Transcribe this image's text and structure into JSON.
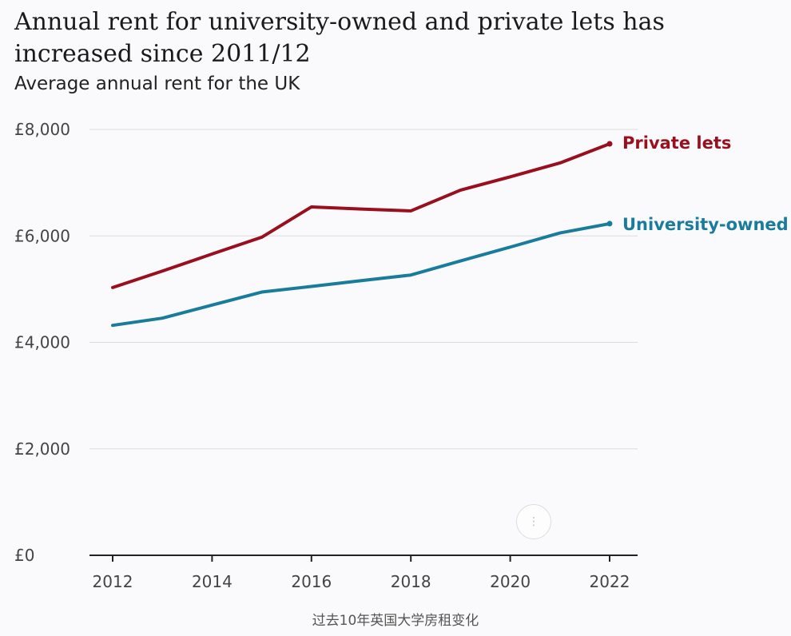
{
  "chart_data": {
    "type": "line",
    "title": "Annual rent for university-owned and private lets has increased since 2011/12",
    "subtitle": "Average annual rent for the UK",
    "x": [
      2012,
      2013,
      2014,
      2015,
      2016,
      2017,
      2018,
      2019,
      2020,
      2021,
      2022
    ],
    "x_ticks": [
      "2012",
      "2014",
      "2016",
      "2018",
      "2020",
      "2022"
    ],
    "y_ticks": [
      "£0",
      "£2,000",
      "£4,000",
      "£6,000",
      "£8,000"
    ],
    "y_tick_values": [
      0,
      2000,
      4000,
      6000,
      8000
    ],
    "ylim": [
      0,
      8000
    ],
    "xlim": [
      2012,
      2022
    ],
    "grid": "horizontal",
    "legend": "direct labels at line ends (right)",
    "series": [
      {
        "name": "Private lets",
        "color": "#990f1e",
        "values": [
          5030,
          5340,
          5660,
          5975,
          6545,
          6505,
          6470,
          6860,
          7110,
          7370,
          7730
        ]
      },
      {
        "name": "University-owned",
        "color": "#1a7c9c",
        "values": [
          4320,
          4455,
          4700,
          4945,
          5050,
          5160,
          5265,
          5530,
          5790,
          6055,
          6230
        ]
      }
    ]
  },
  "caption": "过去10年英国大学房租变化",
  "scroll_icon": "scroll-indicator-icon"
}
